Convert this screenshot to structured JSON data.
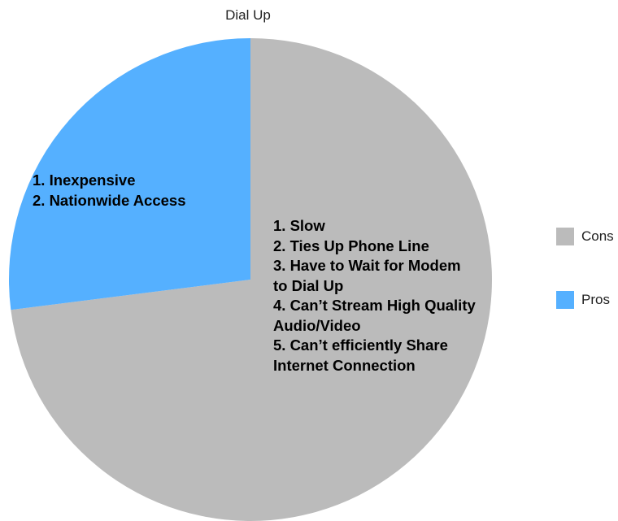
{
  "chart_data": {
    "type": "pie",
    "title": "Dial Up",
    "slices": [
      {
        "name": "Cons",
        "value": 73,
        "color": "#bbbbbb",
        "label_lines": [
          "1.  Slow",
          "2.  Ties Up Phone Line",
          "3.  Have to Wait for Modem",
          "to Dial Up",
          "4.  Can’t Stream High Quality",
          "Audio/Video",
          "5.  Can’t efficiently Share",
          "Internet Connection"
        ]
      },
      {
        "name": "Pros",
        "value": 27,
        "color": "#55b0ff",
        "label_lines": [
          "1.  Inexpensive",
          "2.  Nationwide Access"
        ]
      }
    ],
    "legend": {
      "position": "right",
      "items": [
        "Cons",
        "Pros"
      ]
    }
  }
}
